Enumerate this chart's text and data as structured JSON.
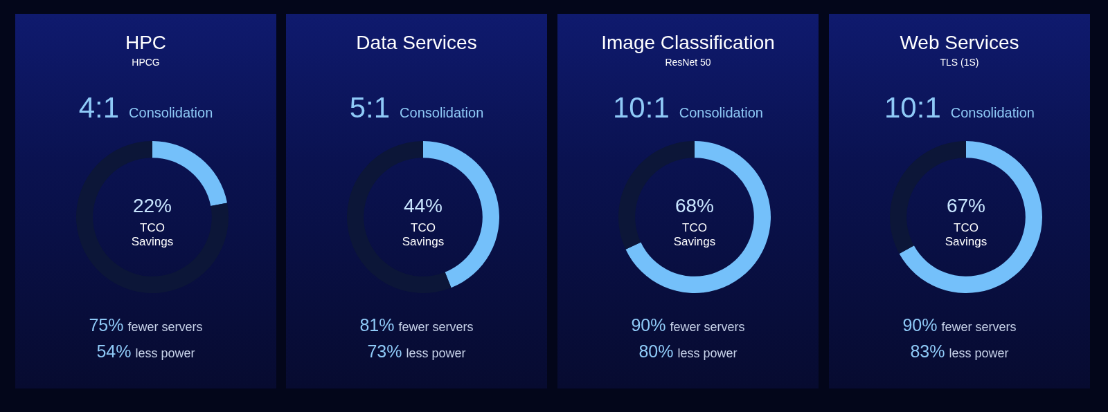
{
  "chart_data": [
    {
      "type": "donut",
      "title": "HPC",
      "subtitle": "HPCG",
      "categories": [
        null,
        null
      ],
      "values": [
        22,
        78
      ],
      "colors": [
        "#74c0fa",
        "#0c1638"
      ],
      "annotations": [
        "4:1 Consolidation",
        "22%",
        "TCO Savings",
        "75% fewer servers",
        "54% less power"
      ]
    },
    {
      "type": "donut",
      "title": "Data Services",
      "categories": [
        null,
        null
      ],
      "values": [
        44,
        56
      ],
      "colors": [
        "#74c0fa",
        "#0c1638"
      ],
      "annotations": [
        "5:1 Consolidation",
        "44%",
        "TCO Savings",
        "81% fewer servers",
        "73% less power"
      ]
    },
    {
      "type": "donut",
      "title": "Image Classification",
      "subtitle": "ResNet 50",
      "categories": [
        null,
        null
      ],
      "values": [
        68,
        32
      ],
      "colors": [
        "#74c0fa",
        "#0c1638"
      ],
      "annotations": [
        "10:1 Consolidation",
        "68%",
        "TCO Savings",
        "90% fewer servers",
        "80% less power"
      ]
    },
    {
      "type": "donut",
      "title": "Web Services",
      "subtitle": "TLS (1S)",
      "categories": [
        null,
        null
      ],
      "values": [
        67,
        33
      ],
      "colors": [
        "#74c0fa",
        "#0c1638"
      ],
      "annotations": [
        "10:1 Consolidation",
        "67%",
        "TCO Savings",
        "90% fewer servers",
        "83% less power"
      ]
    }
  ]
}
